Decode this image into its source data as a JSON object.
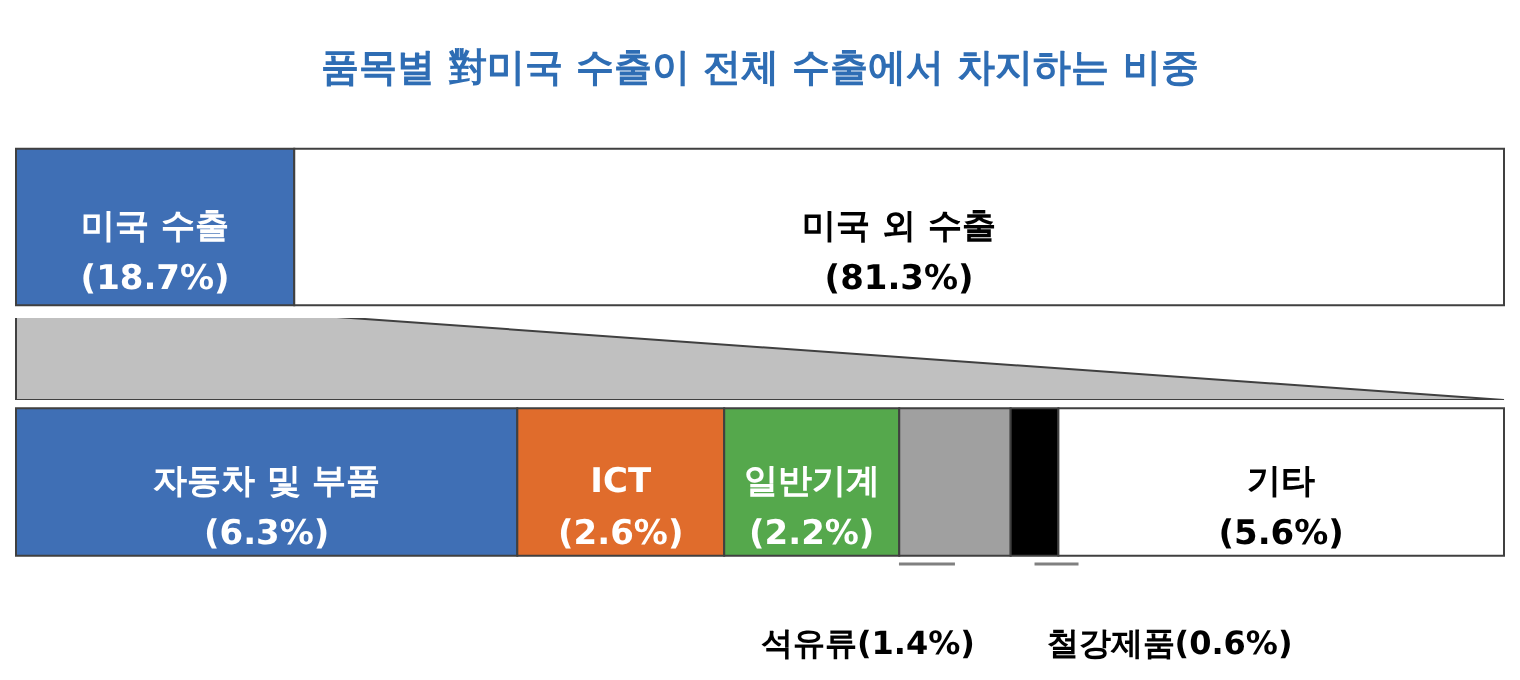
{
  "chart_data": [
    {
      "type": "bar",
      "orientation": "horizontal",
      "stacked": true,
      "title": "품목별 對미국 수출이 전체 수출에서 차지하는 비중",
      "categories": [
        null
      ],
      "series": [
        {
          "name": "미국 수출",
          "color": "#3f6fb5",
          "values": [
            18.7
          ],
          "value_labels": [
            "(18.7%)"
          ]
        },
        {
          "name": "미국 외 수출",
          "color": "#ffffff",
          "values": [
            81.3
          ],
          "value_labels": [
            "(81.3%)"
          ]
        }
      ]
    },
    {
      "type": "bar",
      "orientation": "horizontal",
      "stacked": true,
      "categories": [
        null
      ],
      "series": [
        {
          "name": "자동차 및 부품",
          "color": "#3f6fb5",
          "values": [
            6.3
          ],
          "value_labels": [
            "(6.3%)"
          ]
        },
        {
          "name": "ICT",
          "color": "#e06c2c",
          "values": [
            2.6
          ],
          "value_labels": [
            "(2.6%)"
          ]
        },
        {
          "name": "일반기계",
          "color": "#55a84c",
          "values": [
            2.2
          ],
          "value_labels": [
            "(2.2%)"
          ]
        },
        {
          "name": "석유류",
          "color": "#a0a0a0",
          "values": [
            1.4
          ],
          "value_labels": [
            "(1.4%)"
          ]
        },
        {
          "name": "철강제품",
          "color": "#000000",
          "values": [
            0.6
          ],
          "value_labels": [
            "(0.6%)"
          ]
        },
        {
          "name": "기타",
          "color": "#ffffff",
          "values": [
            5.6
          ],
          "value_labels": [
            "(5.6%)"
          ]
        }
      ]
    }
  ]
}
